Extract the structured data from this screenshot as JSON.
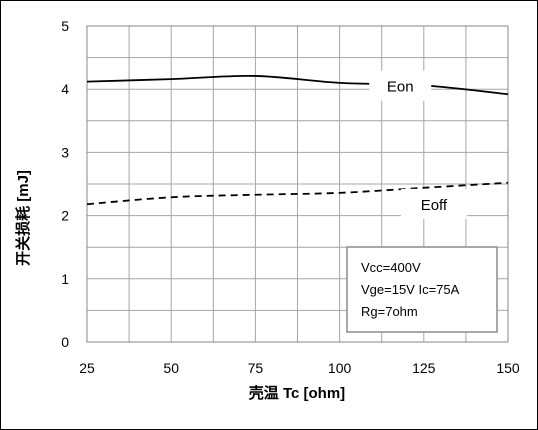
{
  "chart_data": {
    "type": "line",
    "xlabel": "壳温 Tc [ohm]",
    "ylabel": "开关损耗 [mJ]",
    "xlim": [
      25,
      150
    ],
    "ylim": [
      0,
      5
    ],
    "x_ticks": [
      "25",
      "50",
      "75",
      "100",
      "125",
      "150"
    ],
    "y_ticks": [
      "0",
      "1",
      "2",
      "3",
      "4",
      "5"
    ],
    "grid": true,
    "series": [
      {
        "name": "Eon",
        "style": "solid",
        "color": "#000000",
        "x": [
          25,
          50,
          75,
          100,
          125,
          150
        ],
        "y": [
          4.12,
          4.16,
          4.21,
          4.1,
          4.06,
          3.92
        ]
      },
      {
        "name": "Eoff",
        "style": "dashed",
        "color": "#000000",
        "x": [
          25,
          50,
          75,
          100,
          125,
          150
        ],
        "y": [
          2.18,
          2.29,
          2.33,
          2.36,
          2.44,
          2.52
        ]
      }
    ],
    "annotation": [
      "Vcc=400V",
      "Vge=15V Ic=75A",
      "Rg=7ohm"
    ]
  }
}
